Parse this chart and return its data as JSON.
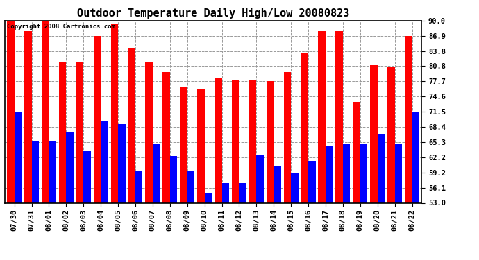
{
  "title": "Outdoor Temperature Daily High/Low 20080823",
  "copyright": "Copyright 2008 Cartronics.com",
  "dates": [
    "07/30",
    "07/31",
    "08/01",
    "08/02",
    "08/03",
    "08/04",
    "08/05",
    "08/06",
    "08/07",
    "08/08",
    "08/09",
    "08/10",
    "08/11",
    "08/12",
    "08/13",
    "08/14",
    "08/15",
    "08/16",
    "08/17",
    "08/18",
    "08/19",
    "08/20",
    "08/21",
    "08/22"
  ],
  "highs": [
    90.0,
    88.0,
    90.0,
    81.5,
    81.5,
    86.9,
    89.5,
    84.5,
    81.5,
    79.5,
    76.5,
    76.0,
    78.5,
    78.0,
    78.0,
    77.8,
    79.5,
    83.5,
    88.0,
    88.0,
    73.5,
    81.0,
    80.5,
    86.9
  ],
  "lows": [
    71.5,
    65.5,
    65.5,
    67.5,
    63.5,
    69.5,
    69.0,
    59.5,
    65.0,
    62.5,
    59.5,
    55.0,
    57.0,
    57.0,
    62.8,
    60.5,
    59.0,
    61.5,
    64.5,
    65.0,
    65.0,
    67.0,
    65.0,
    71.5
  ],
  "bar_width": 0.42,
  "high_color": "#ff0000",
  "low_color": "#0000ff",
  "background_color": "#ffffff",
  "grid_color": "#999999",
  "ymin": 53.0,
  "ymax": 90.0,
  "yticks": [
    53.0,
    56.1,
    59.2,
    62.2,
    65.3,
    68.4,
    71.5,
    74.6,
    77.7,
    80.8,
    83.8,
    86.9,
    90.0
  ],
  "title_fontsize": 11,
  "tick_fontsize": 7.5,
  "copyright_fontsize": 6.5
}
